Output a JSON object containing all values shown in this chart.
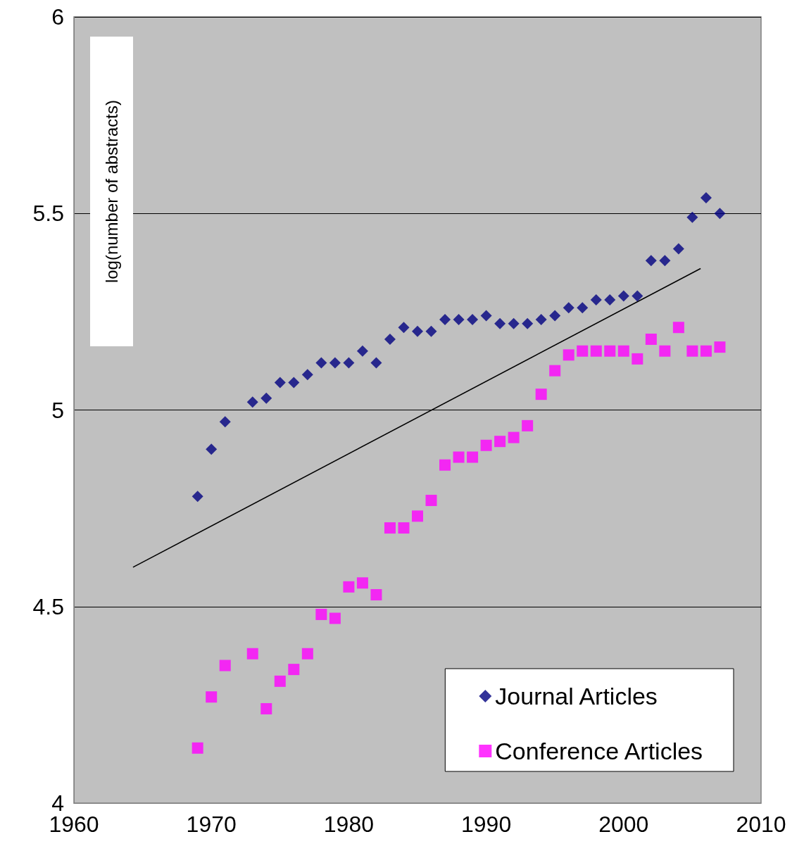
{
  "chart_data": {
    "type": "scatter",
    "ylabel": "log(number of abstracts)",
    "xlim": [
      1960,
      2010
    ],
    "xticks": [
      1960,
      1970,
      1980,
      1990,
      2000,
      2010
    ],
    "ylim": [
      4,
      6
    ],
    "yticks": [
      4,
      4.5,
      5,
      5.5,
      6
    ],
    "grid": "y",
    "legend": "bottom right",
    "series": [
      {
        "name": "Journal Articles",
        "color": "#000080",
        "marker": "diamond",
        "x": [
          1969,
          1970,
          1971,
          1973,
          1974,
          1975,
          1976,
          1977,
          1978,
          1979,
          1980,
          1981,
          1982,
          1983,
          1984,
          1985,
          1986,
          1987,
          1988,
          1989,
          1990,
          1991,
          1992,
          1993,
          1994,
          1995,
          1996,
          1997,
          1998,
          1999,
          2000,
          2001,
          2002,
          2003,
          2004,
          2005,
          2006,
          2007
        ],
        "values": [
          4.78,
          4.9,
          4.97,
          5.02,
          5.03,
          5.07,
          5.07,
          5.09,
          5.12,
          5.12,
          5.12,
          5.15,
          5.12,
          5.18,
          5.21,
          5.2,
          5.2,
          5.23,
          5.23,
          5.23,
          5.24,
          5.22,
          5.22,
          5.22,
          5.23,
          5.24,
          5.26,
          5.26,
          5.28,
          5.28,
          5.29,
          5.29,
          5.38,
          5.38,
          5.41,
          5.49,
          5.54,
          5.5
        ]
      },
      {
        "name": "Conference Articles",
        "color": "#ff00ff",
        "marker": "square",
        "x": [
          1969,
          1970,
          1971,
          1973,
          1974,
          1975,
          1976,
          1977,
          1978,
          1979,
          1980,
          1981,
          1982,
          1983,
          1984,
          1985,
          1986,
          1987,
          1988,
          1989,
          1990,
          1991,
          1992,
          1993,
          1994,
          1995,
          1996,
          1997,
          1998,
          1999,
          2000,
          2001,
          2002,
          2003,
          2004,
          2005,
          2006,
          2007
        ],
        "values": [
          4.14,
          4.27,
          4.35,
          4.38,
          4.24,
          4.31,
          4.34,
          4.38,
          4.48,
          4.47,
          4.55,
          4.56,
          4.53,
          4.7,
          4.7,
          4.73,
          4.77,
          4.86,
          4.88,
          4.88,
          4.91,
          4.92,
          4.93,
          4.96,
          5.04,
          5.1,
          5.14,
          5.15,
          5.15,
          5.15,
          5.15,
          5.13,
          5.18,
          5.15,
          5.21,
          5.15,
          5.15,
          5.16
        ]
      },
      {
        "type": "line",
        "color": "#000000",
        "marker": "none",
        "line_style": "solid",
        "x": [
          1964.3,
          2005.6
        ],
        "values": [
          4.6,
          5.36
        ]
      }
    ]
  }
}
